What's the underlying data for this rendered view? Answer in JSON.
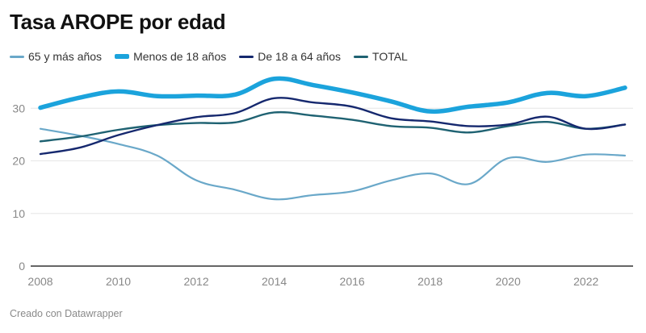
{
  "chart_data": {
    "type": "line",
    "title": "Tasa AROPE por edad",
    "xlabel": "",
    "ylabel": "",
    "x": [
      2008,
      2009,
      2010,
      2011,
      2012,
      2013,
      2014,
      2015,
      2016,
      2017,
      2018,
      2019,
      2020,
      2021,
      2022,
      2023
    ],
    "xlim": [
      2008,
      2023
    ],
    "ylim": [
      0,
      40
    ],
    "x_ticks": [
      2008,
      2010,
      2012,
      2014,
      2016,
      2018,
      2020,
      2022
    ],
    "y_ticks": [
      0,
      10,
      20,
      30
    ],
    "grid": true,
    "legend_position": "top-left",
    "series": [
      {
        "name": "65 y más años",
        "color": "#6aa8c9",
        "weight": "thin",
        "values": [
          26.1,
          24.8,
          23.2,
          21.0,
          16.3,
          14.5,
          12.7,
          13.5,
          14.2,
          16.3,
          17.6,
          15.6,
          20.5,
          19.8,
          21.2,
          21.0
        ]
      },
      {
        "name": "Menos de 18 años",
        "color": "#1ba3dc",
        "weight": "thick",
        "values": [
          30.1,
          32.0,
          33.2,
          32.3,
          32.4,
          32.6,
          35.6,
          34.4,
          33.0,
          31.3,
          29.4,
          30.3,
          31.1,
          32.9,
          32.3,
          33.9
        ]
      },
      {
        "name": "De 18 a 64 años",
        "color": "#15286e",
        "weight": "medium",
        "values": [
          21.3,
          22.5,
          24.9,
          26.8,
          28.3,
          29.1,
          31.9,
          31.1,
          30.3,
          28.1,
          27.5,
          26.6,
          26.9,
          28.4,
          26.1,
          26.9
        ]
      },
      {
        "name": "TOTAL",
        "color": "#1f6272",
        "weight": "medium",
        "values": [
          23.7,
          24.6,
          25.9,
          26.8,
          27.2,
          27.3,
          29.2,
          28.6,
          27.8,
          26.6,
          26.3,
          25.4,
          26.6,
          27.4,
          26.1,
          26.9
        ]
      }
    ]
  },
  "footer": {
    "credit": "Creado con Datawrapper"
  }
}
